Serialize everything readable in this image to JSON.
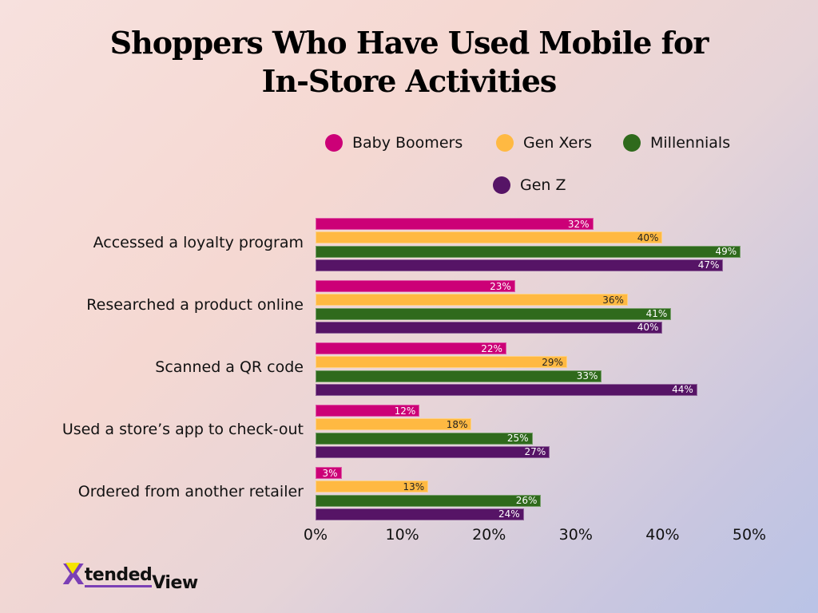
{
  "header": {
    "title_line1": "Shoppers Who Have Used Mobile for",
    "title_line2": "In-Store Activities"
  },
  "legend": [
    {
      "label": "Baby Boomers",
      "color": "#cc0077"
    },
    {
      "label": "Gen Xers",
      "color": "#ffb942"
    },
    {
      "label": "Millennials",
      "color": "#2f6a1c"
    },
    {
      "label": "Gen Z",
      "color": "#561466"
    }
  ],
  "axis": {
    "ticks": [
      "0%",
      "10%",
      "20%",
      "30%",
      "40%",
      "50%"
    ]
  },
  "logo": {
    "x": "X",
    "tended": "tended",
    "view": "View"
  },
  "chart_data": {
    "type": "bar",
    "orientation": "horizontal",
    "title": "Shoppers Who Have Used Mobile for In-Store Activities",
    "xlabel": "",
    "ylabel": "",
    "xlim": [
      0,
      50
    ],
    "x_tick_labels": [
      "0%",
      "10%",
      "20%",
      "30%",
      "40%",
      "50%"
    ],
    "grid": false,
    "legend_position": "top",
    "categories": [
      "Accessed a loyalty program",
      "Researched a product online",
      "Scanned a QR code",
      "Used a store’s app to check-out",
      "Ordered from another retailer"
    ],
    "series": [
      {
        "name": "Baby Boomers",
        "color": "#cc0077",
        "values": [
          32,
          23,
          22,
          12,
          3
        ]
      },
      {
        "name": "Gen Xers",
        "color": "#ffb942",
        "values": [
          40,
          36,
          29,
          18,
          13
        ]
      },
      {
        "name": "Millennials",
        "color": "#2f6a1c",
        "values": [
          49,
          41,
          33,
          25,
          26
        ]
      },
      {
        "name": "Gen Z",
        "color": "#561466",
        "values": [
          47,
          40,
          44,
          27,
          24
        ]
      }
    ],
    "value_labels": [
      [
        "32%",
        "40%",
        "49%",
        "47%"
      ],
      [
        "23%",
        "36%",
        "41%",
        "40%"
      ],
      [
        "22%",
        "29%",
        "33%",
        "44%"
      ],
      [
        "12%",
        "18%",
        "25%",
        "27%"
      ],
      [
        "3%",
        "13%",
        "26%",
        "24%"
      ]
    ]
  }
}
